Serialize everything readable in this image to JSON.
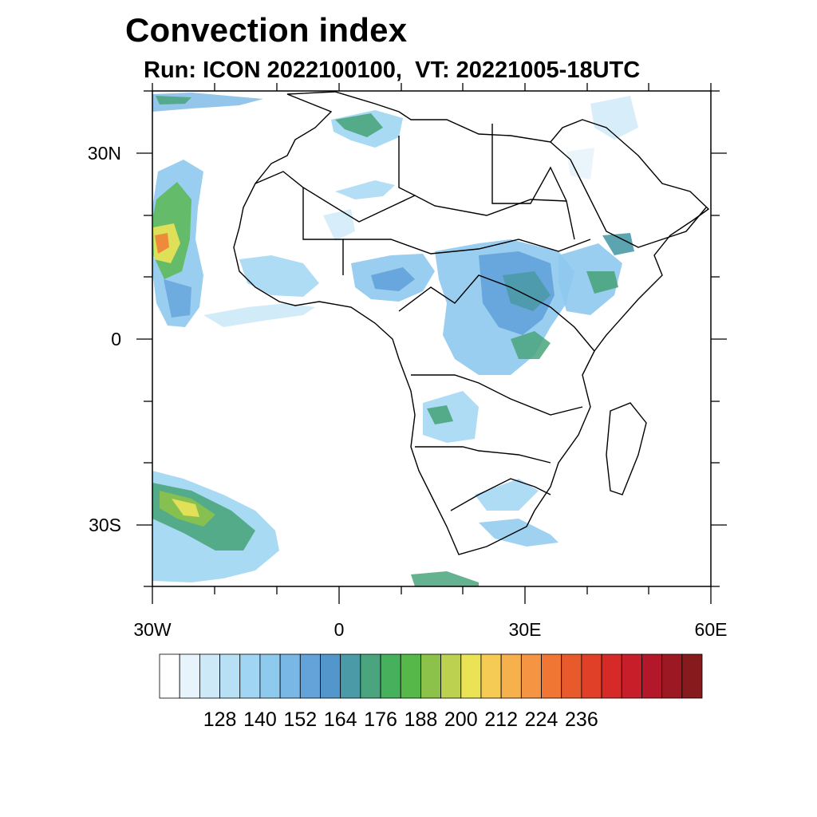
{
  "title": "Convection index",
  "subtitle": "Run: ICON 2022100100,  VT: 20221005-18UTC",
  "map": {
    "lon_range": [
      -30,
      60
    ],
    "lat_range": [
      -40,
      40
    ],
    "lat_ticks": [
      {
        "label": "30N"
      },
      {
        "label": "0"
      },
      {
        "label": "30S"
      }
    ],
    "lon_ticks": [
      {
        "label": "30W"
      },
      {
        "label": "0"
      },
      {
        "label": "30E"
      },
      {
        "label": "60E"
      }
    ]
  },
  "colorbar": {
    "colors": [
      "#ffffff",
      "#e8f4fb",
      "#cde9f7",
      "#b7e0f5",
      "#a0d6f3",
      "#8ec9ee",
      "#79b7e6",
      "#63a3da",
      "#5396cb",
      "#4b9aa8",
      "#4aa57e",
      "#47b05c",
      "#56b848",
      "#8cc24a",
      "#bdd150",
      "#ebe356",
      "#f5cb55",
      "#f6b14d",
      "#f59442",
      "#f07634",
      "#e85a2b",
      "#df4027",
      "#d62a28",
      "#c71e2a",
      "#b3182a",
      "#9c1822",
      "#871a1c"
    ],
    "labels": [
      "128",
      "140",
      "152",
      "164",
      "176",
      "188",
      "200",
      "212",
      "224",
      "236"
    ]
  }
}
